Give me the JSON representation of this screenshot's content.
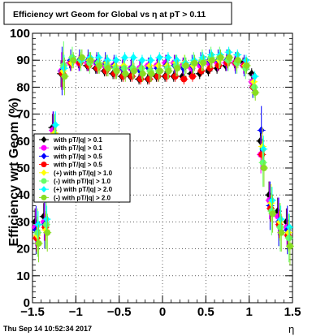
{
  "title": "Efficiency wrt Geom for Global vs  η at pT > 0.11",
  "footer_timestamp": "Thu Sep 14 10:52:34 2017",
  "chart_data": {
    "type": "scatter",
    "title": "Efficiency wrt Geom for Global vs  η at pT > 0.11",
    "xlabel": "η",
    "ylabel": "Efficiency wrt Geom (%)",
    "xlim": [
      -1.5,
      1.5
    ],
    "ylim": [
      0,
      100
    ],
    "x_ticks": [
      "−1.5",
      "−1",
      "−0.5",
      "0",
      "0.5",
      "1",
      "1.5"
    ],
    "y_ticks": [
      "0",
      "10",
      "20",
      "30",
      "40",
      "50",
      "60",
      "70",
      "80",
      "90",
      "100"
    ],
    "grid": true,
    "legend_position": "center-left",
    "x": [
      -1.45,
      -1.35,
      -1.25,
      -1.15,
      -1.05,
      -0.95,
      -0.85,
      -0.75,
      -0.65,
      -0.55,
      -0.45,
      -0.35,
      -0.25,
      -0.15,
      -0.05,
      0.05,
      0.15,
      0.25,
      0.35,
      0.45,
      0.55,
      0.65,
      0.75,
      0.85,
      0.95,
      1.05,
      1.15,
      1.25,
      1.35,
      1.45
    ],
    "series": [
      {
        "name": "with pT/|q| > 0.1",
        "color": "#000000",
        "values": [
          30,
          32,
          65,
          85,
          89,
          89,
          88,
          87,
          86,
          85,
          84,
          84,
          83,
          83,
          84,
          84,
          84,
          84,
          85,
          85,
          86,
          87,
          88,
          89,
          89,
          85,
          60,
          40,
          34,
          30
        ]
      },
      {
        "name": "with pT/|q| > 0.1",
        "color": "#ff00ff",
        "values": [
          28,
          30,
          64,
          86,
          89,
          89,
          89,
          89,
          88,
          88,
          87,
          87,
          87,
          88,
          88,
          89,
          89,
          88,
          87,
          88,
          89,
          89,
          89,
          89,
          88,
          82,
          55,
          38,
          32,
          28
        ]
      },
      {
        "name": "with pT/|q| > 0.5",
        "color": "#0000ff",
        "values": [
          27,
          29,
          62,
          86,
          90,
          90,
          90,
          89,
          89,
          88,
          87,
          87,
          86,
          87,
          87,
          88,
          88,
          87,
          88,
          89,
          90,
          90,
          90,
          89,
          88,
          80,
          64,
          36,
          30,
          27
        ]
      },
      {
        "name": "with pT/|q| > 0.5",
        "color": "#ff0000",
        "values": [
          24,
          28,
          60,
          85,
          89,
          89,
          88,
          87,
          86,
          85,
          84,
          84,
          83,
          83,
          84,
          84,
          84,
          83,
          84,
          86,
          87,
          88,
          89,
          89,
          88,
          80,
          55,
          35,
          29,
          25
        ]
      },
      {
        "name": "(+) with pT/|q| > 1.0",
        "color": "#ffff00",
        "values": [
          25,
          27,
          63,
          86,
          89,
          90,
          90,
          89,
          89,
          88,
          88,
          87,
          87,
          88,
          88,
          88,
          89,
          89,
          88,
          89,
          90,
          90,
          90,
          89,
          88,
          82,
          58,
          37,
          30,
          26
        ]
      },
      {
        "name": "(-) with pT/|q| > 1.0",
        "color": "#66ff66",
        "values": [
          26,
          29,
          61,
          88,
          91,
          90,
          89,
          89,
          88,
          87,
          87,
          87,
          87,
          86,
          86,
          87,
          88,
          88,
          89,
          90,
          91,
          91,
          90,
          89,
          87,
          80,
          52,
          34,
          28,
          24
        ]
      },
      {
        "name": "(+) with pT/|q| > 2.0",
        "color": "#00ffff",
        "values": [
          29,
          31,
          66,
          87,
          90,
          90,
          91,
          91,
          90,
          90,
          91,
          91,
          90,
          90,
          91,
          91,
          90,
          89,
          90,
          91,
          92,
          92,
          93,
          92,
          90,
          84,
          57,
          38,
          31,
          28
        ]
      },
      {
        "name": "(-) with pT/|q| > 2.0",
        "color": "#88dd22",
        "values": [
          22,
          26,
          58,
          84,
          90,
          91,
          90,
          88,
          87,
          86,
          85,
          86,
          85,
          85,
          86,
          86,
          87,
          88,
          89,
          89,
          90,
          91,
          91,
          90,
          88,
          78,
          50,
          33,
          26,
          21
        ]
      }
    ]
  }
}
